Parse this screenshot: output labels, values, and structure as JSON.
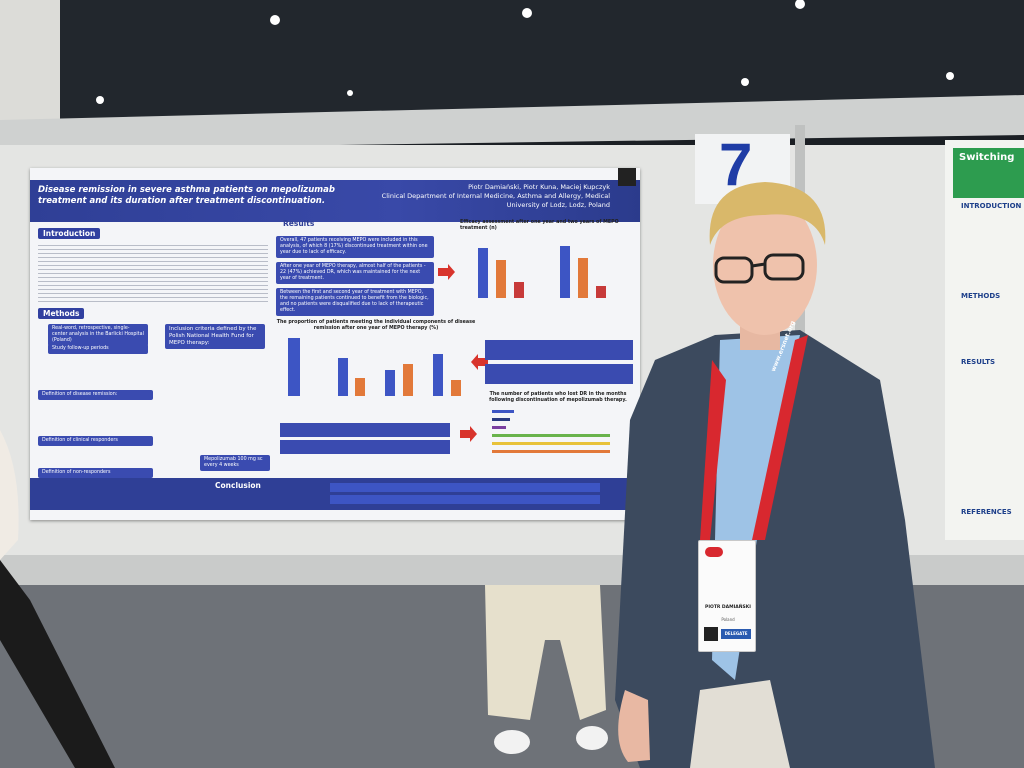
{
  "board_number": "7",
  "poster": {
    "title": "Disease remission in severe asthma patients on mepolizumab treatment and its duration after treatment discontinuation.",
    "authors": "Piotr Damiański, Piotr Kuna, Maciej Kupczyk",
    "affiliation": "Clinical Department of Internal Medicine, Asthma and Allergy, Medical University of Lodz, Lodz, Poland",
    "sections": {
      "introduction": "Introduction",
      "methods": "Methods",
      "results": "Results",
      "conclusion": "Conclusion"
    },
    "methods": [
      "Real-word, retrospective, single-center analysis in the Barlicki Hospital (Poland)",
      "Study follow-up periods",
      "Definition of disease remission:",
      "Definition of clinical responders",
      "Definition of non-responders"
    ],
    "inclusion": "Inclusion criteria defined by the Polish National Health Fund for MEPO therapy:",
    "dose": "Mepolizumab 100 mg sc every 4 weeks",
    "results": [
      "Overall, 47 patients receiving MEPO were included in this analysis, of which 8 (17%) discontinued treatment within one year due to lack of efficacy.",
      "After one year of MEPO therapy, almost half of the patients - 22 (47%) achieved DR, which was maintained for the next year of treatment.",
      "Between the first and second year of treatment with MEPO, the remaining patients continued to benefit from the biologic, and no patients were disqualified due to lack of therapeutic effect."
    ],
    "chart_captions": [
      "Efficacy assessment after one year and two years of MEPO treatment (n)",
      "The proportion of patients meeting the individual components of disease remission after one year of MEPO therapy (%)",
      "The number of patients who lost DR in the months following discontinuation of mepolizumab therapy."
    ]
  },
  "neighbor_poster": {
    "title": "Switching",
    "headings": [
      "INTRODUCTION",
      "METHODS",
      "RESULTS",
      "REFERENCES"
    ]
  },
  "badge": {
    "name": "PIOTR DAMIAŃSKI",
    "country": "Poland",
    "role": "DELEGATE"
  },
  "lanyard": "www.ersnet.org"
}
